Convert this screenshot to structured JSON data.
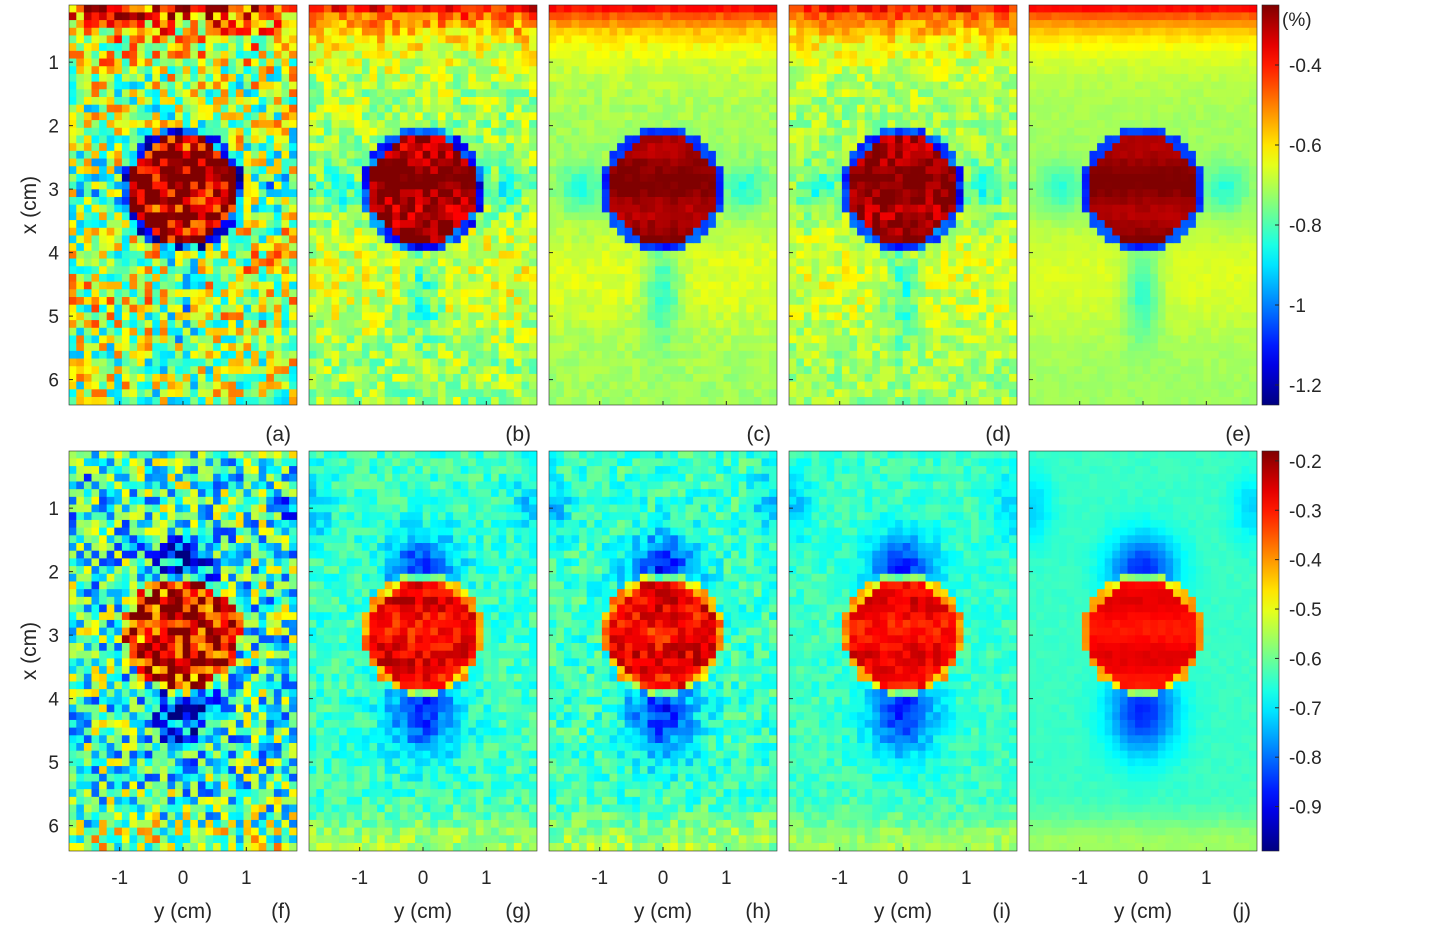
{
  "figure": {
    "panel_labels": [
      "(a)",
      "(b)",
      "(c)",
      "(d)",
      "(e)",
      "(f)",
      "(g)",
      "(h)",
      "(i)",
      "(j)"
    ],
    "xlabel": "y (cm)",
    "ylabel": "x (cm)",
    "x_ticks": [
      "-1",
      "0",
      "1"
    ],
    "y_ticks": [
      "1",
      "2",
      "3",
      "4",
      "5",
      "6"
    ],
    "colorbar_top_unit": "(%)",
    "colorbar_top_ticks": [
      "-0.4",
      "-0.6",
      "-0.8",
      "-1",
      "-1.2"
    ],
    "colorbar_bottom_ticks": [
      "-0.2",
      "-0.3",
      "-0.4",
      "-0.5",
      "-0.6",
      "-0.7",
      "-0.8",
      "-0.9"
    ]
  },
  "chart_data": [
    {
      "type": "heatmap",
      "row": "top",
      "panels": [
        "(a)",
        "(b)",
        "(c)",
        "(d)",
        "(e)"
      ],
      "xlabel": "",
      "ylabel": "x (cm)",
      "xlim": [
        -1.8,
        1.8
      ],
      "ylim": [
        6.4,
        0.1
      ],
      "x_ticks": [
        -1,
        0,
        1
      ],
      "y_ticks": [
        1,
        2,
        3,
        4,
        5,
        6
      ],
      "colorbar": {
        "label": "(%)",
        "range": [
          -1.25,
          -0.25
        ],
        "ticks": [
          -0.4,
          -0.6,
          -0.8,
          -1,
          -1.2
        ],
        "colormap": "jet"
      },
      "inclusion": {
        "center_y": 0,
        "center_x": 3,
        "radius": 0.85,
        "value": -0.27
      },
      "background_value": -0.72,
      "top_edge_value": -0.35,
      "noise_level": [
        0.55,
        0.22,
        0.06,
        0.16,
        0.03
      ]
    },
    {
      "type": "heatmap",
      "row": "bottom",
      "panels": [
        "(f)",
        "(g)",
        "(h)",
        "(i)",
        "(j)"
      ],
      "xlabel": "y (cm)",
      "ylabel": "x (cm)",
      "xlim": [
        -1.8,
        1.8
      ],
      "ylim": [
        6.4,
        0.1
      ],
      "x_ticks": [
        -1,
        0,
        1
      ],
      "y_ticks": [
        1,
        2,
        3,
        4,
        5,
        6
      ],
      "colorbar": {
        "label": "",
        "range": [
          -0.99,
          -0.18
        ],
        "ticks": [
          -0.2,
          -0.3,
          -0.4,
          -0.5,
          -0.6,
          -0.7,
          -0.8,
          -0.9
        ],
        "colormap": "jet"
      },
      "inclusion": {
        "center_y": 0,
        "center_x": 3,
        "radius": 0.85,
        "value": -0.28
      },
      "background_value": -0.64,
      "low_lobes_value": -0.85,
      "noise_level": [
        0.45,
        0.12,
        0.14,
        0.08,
        0.02
      ]
    }
  ]
}
